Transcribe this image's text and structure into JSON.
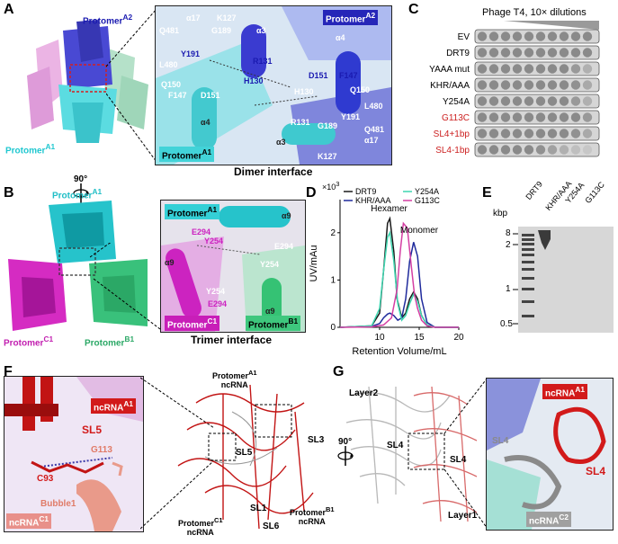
{
  "panel_a": {
    "letter": "A",
    "protomer_a2": "Protomer",
    "protomer_a2_sup": "A2",
    "protomer_a1": "Protomer",
    "protomer_a1_sup": "A1",
    "zoom_protomer_a2": "Protomer",
    "zoom_protomer_a2_sup": "A2",
    "zoom_protomer_a1": "Protomer",
    "zoom_protomer_a1_sup": "A1",
    "caption": "Dimer interface",
    "residues_top": [
      "α17",
      "K127",
      "Q481",
      "G189",
      "α3",
      "R131",
      "Y191",
      "L480",
      "Q150",
      "H130",
      "F147",
      "D151",
      "α4"
    ],
    "residues_bottom": [
      "α4",
      "D151",
      "F147",
      "H130",
      "Q150",
      "R131",
      "G189",
      "Y191",
      "L480",
      "α3",
      "α17",
      "K127",
      "Q481"
    ]
  },
  "rotation_label": "90°",
  "panel_b": {
    "letter": "B",
    "protomer_a1": "Protomer",
    "protomer_a1_sup": "A1",
    "protomer_c1": "Protomer",
    "protomer_c1_sup": "C1",
    "protomer_b1": "Protomer",
    "protomer_b1_sup": "B1",
    "zoom_protomer_a1": "Protomer",
    "zoom_protomer_a1_sup": "A1",
    "zoom_protomer_c1": "Protomer",
    "zoom_protomer_c1_sup": "C1",
    "zoom_protomer_b1": "Protomer",
    "zoom_protomer_b1_sup": "B1",
    "caption": "Trimer interface",
    "residues": [
      "E294",
      "Y254",
      "α9",
      "E294",
      "α9",
      "Y254",
      "Y254",
      "E294",
      "α9"
    ]
  },
  "panel_c": {
    "letter": "C",
    "title": "Phage T4, 10× dilutions",
    "rows": [
      {
        "label": "EV",
        "color": "#000000",
        "spots": [
          1,
          1,
          1,
          1,
          1,
          1,
          1,
          1,
          1,
          1
        ]
      },
      {
        "label": "DRT9",
        "color": "#000000",
        "spots": [
          1,
          1,
          1,
          1,
          1,
          1,
          1,
          1,
          1,
          1
        ]
      },
      {
        "label": "YAAA mut",
        "color": "#000000",
        "spots": [
          1,
          1,
          1,
          1,
          1,
          1,
          1,
          1,
          0.8,
          0.5
        ]
      },
      {
        "label": "KHR/AAA",
        "color": "#000000",
        "spots": [
          1,
          1,
          1,
          1,
          1,
          1,
          1,
          1,
          0.9,
          0.6
        ]
      },
      {
        "label": "Y254A",
        "color": "#000000",
        "spots": [
          1,
          1,
          1,
          1,
          1,
          1,
          1,
          1,
          0.8,
          0.5
        ]
      },
      {
        "label": "G113C",
        "color": "#cc1f1f",
        "spots": [
          1,
          1,
          1,
          1,
          1,
          1,
          1,
          1,
          1,
          0.8
        ]
      },
      {
        "label": "SL4+1bp",
        "color": "#cc1f1f",
        "spots": [
          1,
          1,
          1,
          1,
          1,
          1,
          1,
          1,
          0.9,
          0.6
        ]
      },
      {
        "label": "SL4-1bp",
        "color": "#cc1f1f",
        "spots": [
          1,
          1,
          1,
          1,
          1,
          0.9,
          0.7,
          0.5,
          0.3,
          0.2
        ]
      }
    ]
  },
  "panel_d": {
    "letter": "D",
    "chart_data": {
      "type": "line",
      "xlabel": "Retention Volume/mL",
      "ylabel": "UV/mAu",
      "y_exponent": "×10",
      "y_exponent_power": "3",
      "xlim": [
        5,
        20
      ],
      "ylim": [
        0,
        2.7
      ],
      "xticks": [
        10,
        15,
        20
      ],
      "yticks": [
        0,
        1,
        2
      ],
      "annotations": [
        "Hexamer",
        "Monomer"
      ],
      "series": [
        {
          "name": "DRT9",
          "color": "#1a1a1a",
          "x": [
            5,
            9,
            10,
            10.5,
            11.0,
            11.3,
            11.8,
            12.2,
            12.8,
            13.3,
            13.8,
            14.3,
            14.8,
            15.3,
            16,
            17,
            20
          ],
          "y": [
            0,
            0.03,
            0.3,
            1.2,
            2.2,
            2.3,
            1.6,
            0.6,
            0.2,
            0.3,
            0.6,
            0.75,
            0.6,
            0.25,
            0.05,
            0,
            0
          ]
        },
        {
          "name": "KHR/AAA",
          "color": "#1f2a9c",
          "x": [
            5,
            9,
            10,
            10.5,
            11.0,
            11.3,
            11.8,
            12.3,
            12.8,
            13.3,
            13.8,
            14.3,
            14.8,
            15.3,
            16,
            17,
            20
          ],
          "y": [
            0,
            0.02,
            0.08,
            0.2,
            0.28,
            0.3,
            0.25,
            0.15,
            0.2,
            0.6,
            1.4,
            1.8,
            1.5,
            0.6,
            0.1,
            0,
            0
          ]
        },
        {
          "name": "Y254A",
          "color": "#3ed6b0",
          "x": [
            5,
            9,
            10,
            10.5,
            11.0,
            11.3,
            11.8,
            12.3,
            12.8,
            13.3,
            13.8,
            14.3,
            14.8,
            15.3,
            16,
            17,
            20
          ],
          "y": [
            0,
            0.03,
            0.4,
            1.2,
            1.9,
            2.0,
            1.4,
            0.5,
            0.15,
            0.25,
            0.5,
            0.7,
            0.55,
            0.25,
            0.05,
            0,
            0
          ]
        },
        {
          "name": "G113C",
          "color": "#d43fa3",
          "x": [
            5,
            9,
            10.5,
            11.5,
            12.2,
            12.6,
            13.0,
            13.5,
            14.0,
            14.4,
            14.8,
            15.3,
            16,
            17,
            20
          ],
          "y": [
            0,
            0.01,
            0.05,
            0.2,
            0.8,
            1.6,
            2.2,
            2.1,
            1.3,
            0.7,
            0.4,
            0.15,
            0.03,
            0,
            0
          ]
        }
      ]
    }
  },
  "panel_e": {
    "letter": "E",
    "unit": "kbp",
    "lanes": [
      "DRT9",
      "KHR/AAA",
      "Y254A",
      "G113C"
    ],
    "ladder": [
      "8",
      "2",
      "1",
      "0.5"
    ]
  },
  "panel_f": {
    "letter": "F",
    "zoom_labels": [
      "ncRNA",
      "SL5",
      "G113",
      "C93",
      "Bubble1",
      "ncRNA"
    ],
    "zoom_sups": [
      "A1",
      "C1"
    ],
    "overview_labels": [
      "Protomer",
      "ncRNA",
      "SL5",
      "SL3",
      "SL1",
      "SL6",
      "Protomer",
      "ncRNA",
      "Protomer",
      "ncRNA"
    ],
    "overview_sups": [
      "A1",
      "B1",
      "C1"
    ]
  },
  "panel_g": {
    "letter": "G",
    "labels": [
      "Layer2",
      "SL4",
      "SL4",
      "Layer1"
    ],
    "rotation_label": "90°",
    "zoom_labels": [
      "ncRNA",
      "SL4",
      "SL4",
      "ncRNA"
    ],
    "zoom_sups": [
      "A1",
      "C2"
    ]
  }
}
